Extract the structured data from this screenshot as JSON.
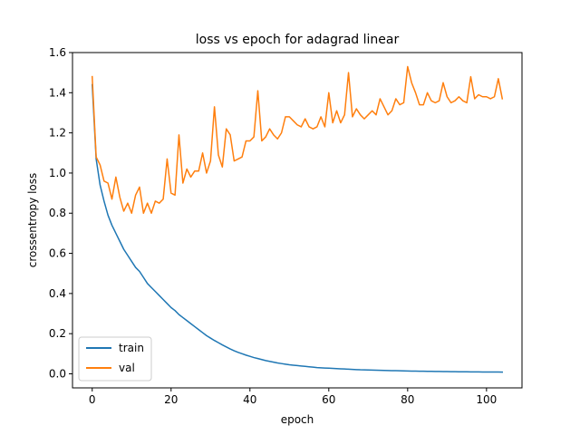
{
  "chart_data": {
    "type": "line",
    "title": "loss vs epoch for adagrad linear",
    "xlabel": "epoch",
    "ylabel": "crossentropy loss",
    "xlim": [
      -5,
      109
    ],
    "ylim": [
      -0.07,
      1.6
    ],
    "xticks": [
      0,
      20,
      40,
      60,
      80,
      100
    ],
    "yticks": [
      0.0,
      0.2,
      0.4,
      0.6,
      0.8,
      1.0,
      1.2,
      1.4,
      1.6
    ],
    "grid": false,
    "legend_position": "lower-left",
    "series": [
      {
        "name": "train",
        "color": "#1f77b4",
        "values": [
          1.44,
          1.07,
          0.94,
          0.86,
          0.79,
          0.74,
          0.7,
          0.66,
          0.62,
          0.59,
          0.56,
          0.53,
          0.51,
          0.48,
          0.45,
          0.43,
          0.41,
          0.39,
          0.37,
          0.35,
          0.33,
          0.315,
          0.295,
          0.28,
          0.265,
          0.25,
          0.235,
          0.22,
          0.205,
          0.19,
          0.178,
          0.166,
          0.155,
          0.144,
          0.134,
          0.124,
          0.115,
          0.107,
          0.1,
          0.093,
          0.087,
          0.081,
          0.076,
          0.071,
          0.066,
          0.062,
          0.058,
          0.054,
          0.051,
          0.048,
          0.045,
          0.043,
          0.041,
          0.039,
          0.037,
          0.035,
          0.033,
          0.031,
          0.03,
          0.029,
          0.028,
          0.027,
          0.026,
          0.025,
          0.024,
          0.023,
          0.022,
          0.021,
          0.02,
          0.0195,
          0.019,
          0.0185,
          0.018,
          0.0175,
          0.017,
          0.0165,
          0.016,
          0.0155,
          0.015,
          0.0145,
          0.014,
          0.0137,
          0.0134,
          0.0131,
          0.0128,
          0.0125,
          0.0122,
          0.0119,
          0.0116,
          0.0113,
          0.011,
          0.0108,
          0.0106,
          0.0104,
          0.0102,
          0.01,
          0.0098,
          0.0096,
          0.0094,
          0.0092,
          0.009,
          0.0089,
          0.0088,
          0.0087,
          0.0086
        ]
      },
      {
        "name": "val",
        "color": "#ff7f0e",
        "values": [
          1.48,
          1.08,
          1.04,
          0.96,
          0.95,
          0.87,
          0.98,
          0.88,
          0.81,
          0.85,
          0.8,
          0.89,
          0.93,
          0.8,
          0.85,
          0.8,
          0.86,
          0.85,
          0.87,
          1.07,
          0.9,
          0.89,
          1.19,
          0.95,
          1.02,
          0.98,
          1.01,
          1.01,
          1.1,
          1.0,
          1.06,
          1.33,
          1.09,
          1.03,
          1.22,
          1.19,
          1.06,
          1.07,
          1.08,
          1.16,
          1.16,
          1.18,
          1.41,
          1.16,
          1.18,
          1.22,
          1.19,
          1.17,
          1.2,
          1.28,
          1.28,
          1.26,
          1.24,
          1.23,
          1.27,
          1.23,
          1.22,
          1.23,
          1.28,
          1.23,
          1.4,
          1.25,
          1.31,
          1.25,
          1.29,
          1.5,
          1.28,
          1.32,
          1.29,
          1.27,
          1.29,
          1.31,
          1.29,
          1.37,
          1.33,
          1.29,
          1.31,
          1.37,
          1.34,
          1.35,
          1.53,
          1.45,
          1.4,
          1.34,
          1.34,
          1.4,
          1.36,
          1.35,
          1.36,
          1.45,
          1.38,
          1.35,
          1.36,
          1.38,
          1.36,
          1.35,
          1.48,
          1.37,
          1.39,
          1.38,
          1.38,
          1.37,
          1.38,
          1.47,
          1.37
        ]
      }
    ]
  }
}
